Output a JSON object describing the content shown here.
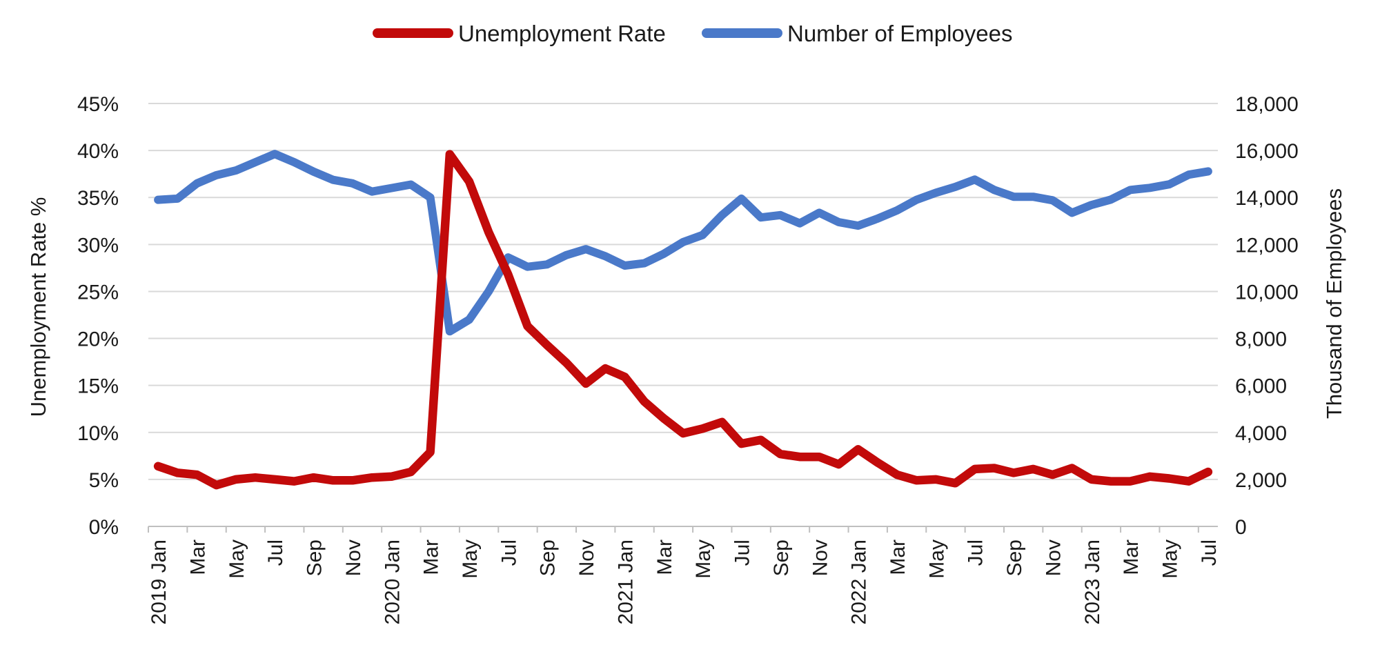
{
  "chart_data": {
    "type": "line",
    "dual_axis": true,
    "legend_position": "top",
    "grid": true,
    "background": "#FFFFFF",
    "grid_color": "#D9D9D9",
    "axis_line_color": "#BFBFBF",
    "text_color": "#1A1A1A",
    "x": {
      "n_points": 55,
      "start": "2019 Jan",
      "end": "2023 Jul",
      "tick_every": 2,
      "tick_labels": [
        "2019 Jan",
        "Mar",
        "May",
        "Jul",
        "Sep",
        "Nov",
        "2020 Jan",
        "Mar",
        "May",
        "Jul",
        "Sep",
        "Nov",
        "2021 Jan",
        "Mar",
        "May",
        "Jul",
        "Sep",
        "Nov",
        "2022 Jan",
        "Mar",
        "May",
        "Jul",
        "Sep",
        "Nov",
        "2023 Jan",
        "Mar",
        "May",
        "Jul"
      ]
    },
    "left_axis": {
      "title": "Unemployment Rate %",
      "min": 0,
      "max": 45,
      "step": 5,
      "tick_labels": [
        "0%",
        "5%",
        "10%",
        "15%",
        "20%",
        "25%",
        "30%",
        "35%",
        "40%",
        "45%"
      ]
    },
    "right_axis": {
      "title": "Thousand of Employees",
      "min": 0,
      "max": 18000,
      "step": 2000,
      "tick_labels": [
        "0",
        "2,000",
        "4,000",
        "6,000",
        "8,000",
        "10,000",
        "12,000",
        "14,000",
        "16,000",
        "18,000"
      ]
    },
    "series": [
      {
        "name": "Unemployment Rate",
        "color": "#C20A0A",
        "axis": "left",
        "unit": "percent",
        "values": [
          6.4,
          5.7,
          5.5,
          4.4,
          5.0,
          5.2,
          5.0,
          4.8,
          5.2,
          4.9,
          4.9,
          5.2,
          5.3,
          5.8,
          7.9,
          39.6,
          36.7,
          31.3,
          26.8,
          21.3,
          19.3,
          17.4,
          15.2,
          16.8,
          15.9,
          13.3,
          11.5,
          9.9,
          10.4,
          11.1,
          8.8,
          9.2,
          7.7,
          7.4,
          7.4,
          6.6,
          8.2,
          6.8,
          5.5,
          4.9,
          5.0,
          4.6,
          6.1,
          6.2,
          5.7,
          6.1,
          5.5,
          6.2,
          5.0,
          4.8,
          4.8,
          5.3,
          5.1,
          4.8,
          5.8
        ]
      },
      {
        "name": "Number of Employees",
        "color": "#4A79C9",
        "axis": "right",
        "unit": "thousand",
        "values": [
          13900,
          13950,
          14600,
          14950,
          15150,
          15500,
          15850,
          15500,
          15100,
          14750,
          14600,
          14250,
          14400,
          14550,
          14000,
          8300,
          8800,
          10000,
          11450,
          11050,
          11150,
          11550,
          11800,
          11500,
          11100,
          11200,
          11600,
          12100,
          12400,
          13250,
          13950,
          13150,
          13250,
          12900,
          13350,
          12950,
          12800,
          13100,
          13450,
          13900,
          14200,
          14450,
          14760,
          14320,
          14030,
          14030,
          13880,
          13350,
          13680,
          13910,
          14320,
          14410,
          14560,
          14970,
          15110
        ]
      }
    ]
  }
}
